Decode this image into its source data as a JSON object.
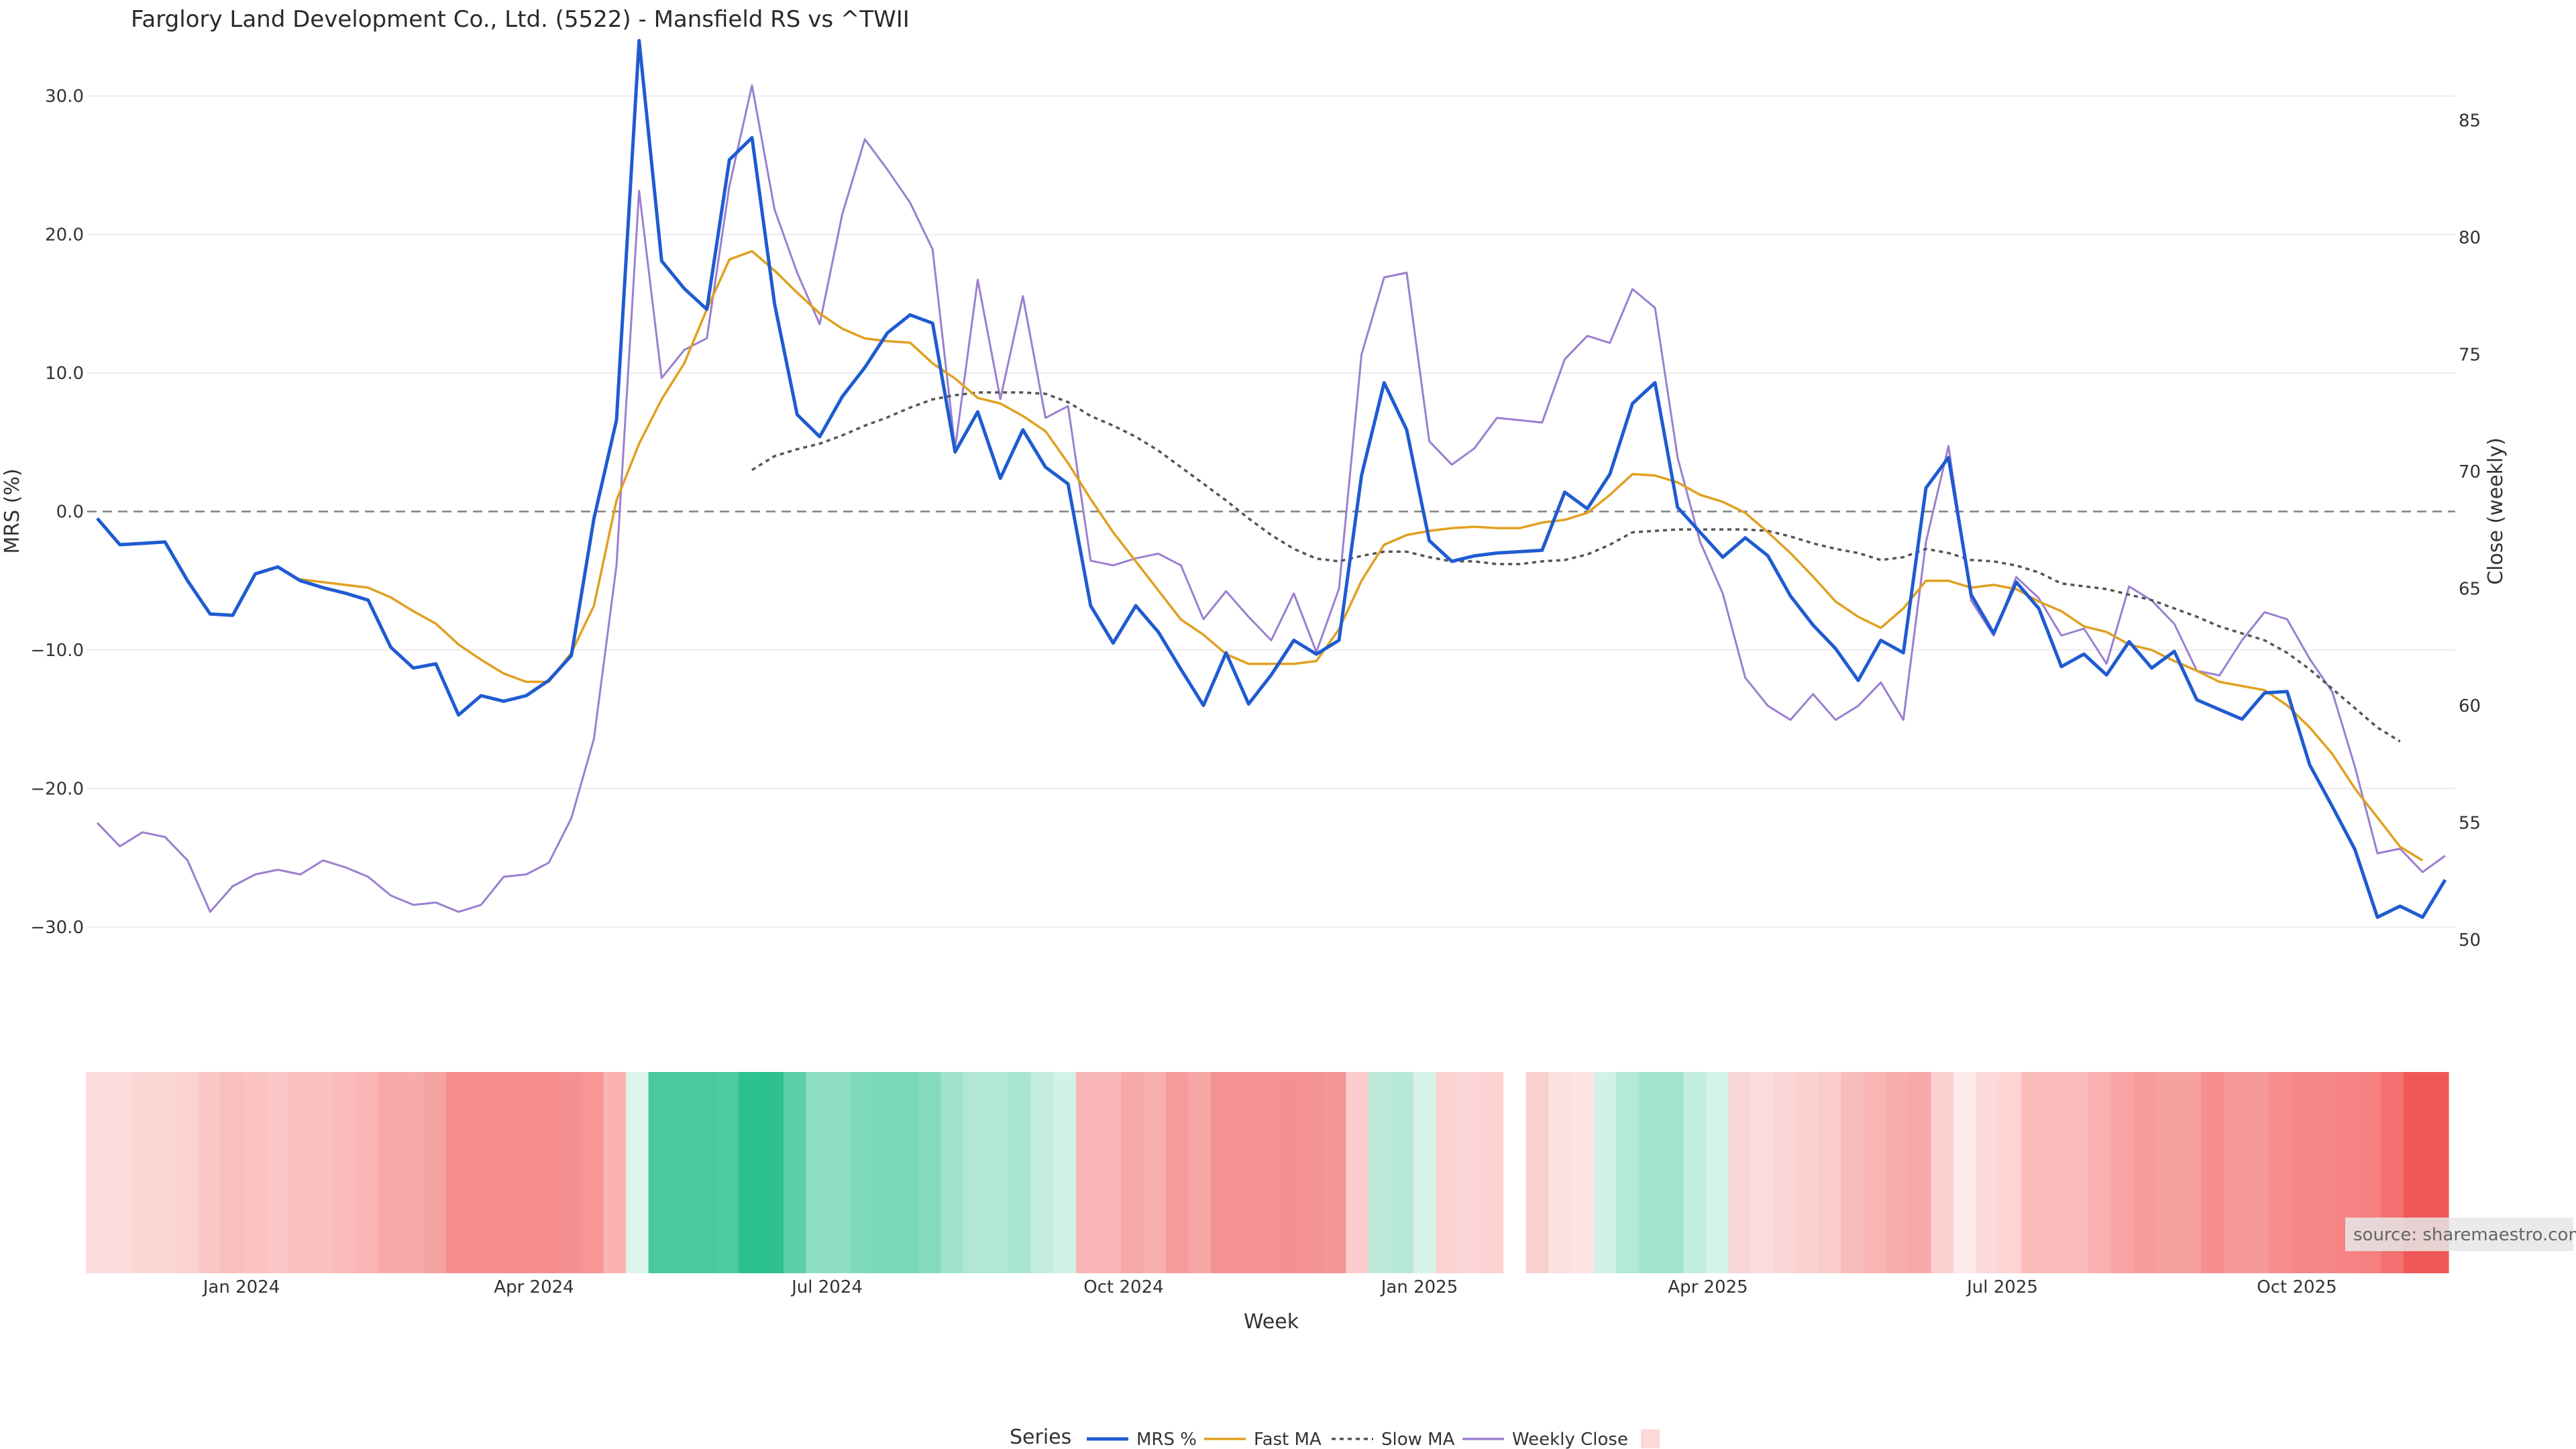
{
  "chart_data": {
    "type": "line",
    "title": "Farglory Land Development Co., Ltd. (5522) - Mansfield RS vs ^TWII",
    "x_axis": {
      "label": "Week",
      "tick_labels": [
        "Jan 2024",
        "Apr 2024",
        "Jul 2024",
        "Oct 2024",
        "Jan 2025",
        "Apr 2025",
        "Jul 2025",
        "Oct 2025"
      ]
    },
    "y_left": {
      "label": "MRS (%)",
      "range": [
        -35,
        35
      ],
      "ticks": [
        "30.0",
        "20.0",
        "10.0",
        "0.0",
        "−10.0",
        "−20.0",
        "−30.0"
      ],
      "tick_values": [
        30,
        20,
        10,
        0,
        -10,
        -20,
        -30
      ]
    },
    "y_right": {
      "label": "Close (weekly)",
      "range": [
        47.6,
        89.0
      ],
      "ticks": [
        "85",
        "80",
        "75",
        "70",
        "65",
        "60",
        "55",
        "50"
      ],
      "tick_values": [
        85,
        80,
        75,
        70,
        65,
        60,
        55,
        50
      ]
    },
    "series": [
      {
        "name": "MRS %",
        "color": "#1f5bd1",
        "axis": "left",
        "values": [
          -0.5,
          -2.4,
          -2.3,
          -2.2,
          -5.0,
          -7.4,
          -7.5,
          -4.5,
          -4.0,
          -5.0,
          -5.5,
          -5.9,
          -6.4,
          -9.8,
          -11.3,
          -11.0,
          -14.7,
          -13.3,
          -13.7,
          -13.3,
          -12.2,
          -10.4,
          -0.5,
          6.6,
          34.0,
          18.1,
          16.1,
          14.6,
          25.4,
          27.0,
          15.0,
          7.0,
          5.4,
          8.3,
          10.4,
          12.9,
          14.2,
          13.6,
          4.3,
          7.2,
          2.4,
          5.9,
          3.2,
          2.0,
          -6.8,
          -9.5,
          -6.8,
          -8.7,
          -11.4,
          -14.0,
          -10.2,
          -13.9,
          -11.8,
          -9.3,
          -10.3,
          -9.3,
          2.6,
          9.3,
          5.9,
          -2.1,
          -3.6,
          -3.2,
          -3.0,
          -2.9,
          -2.8,
          1.4,
          0.2,
          2.7,
          7.8,
          9.3,
          0.3,
          -1.5,
          -3.3,
          -1.9,
          -3.2,
          -6.1,
          -8.2,
          -9.9,
          -12.2,
          -9.3,
          -10.2,
          1.7,
          3.9,
          -6.0,
          -8.8,
          -5.1,
          -7.0,
          -11.2,
          -10.3,
          -11.8,
          -9.4,
          -11.3,
          -10.1,
          -13.6,
          -14.3,
          -15.0,
          -13.1,
          -13.0,
          -18.3,
          -21.3,
          -24.4,
          -29.3,
          -28.5,
          -29.3,
          -26.6
        ]
      },
      {
        "name": "Fast MA",
        "color": "#e0a020",
        "axis": "left",
        "start_index": 9,
        "values": [
          -4.9,
          -5.1,
          -5.3,
          -5.5,
          -6.2,
          -7.2,
          -8.1,
          -9.6,
          -10.7,
          -11.7,
          -12.3,
          -12.3,
          -10.2,
          -6.8,
          0.8,
          4.9,
          8.1,
          10.7,
          14.6,
          18.2,
          18.8,
          17.4,
          15.8,
          14.3,
          13.2,
          12.5,
          12.3,
          12.2,
          10.7,
          9.6,
          8.2,
          7.8,
          6.9,
          5.8,
          3.5,
          0.9,
          -1.5,
          -3.6,
          -5.7,
          -7.8,
          -8.9,
          -10.3,
          -11.0,
          -11.0,
          -11.0,
          -10.8,
          -8.5,
          -5.0,
          -2.4,
          -1.7,
          -1.4,
          -1.2,
          -1.1,
          -1.2,
          -1.2,
          -0.8,
          -0.6,
          -0.1,
          1.2,
          2.7,
          2.6,
          2.1,
          1.2,
          0.7,
          -0.1,
          -1.5,
          -3.0,
          -4.7,
          -6.5,
          -7.6,
          -8.4,
          -7.0,
          -5.0,
          -5.0,
          -5.5,
          -5.3,
          -5.6,
          -6.5,
          -7.2,
          -8.3,
          -8.7,
          -9.6,
          -10.0,
          -10.8,
          -11.5,
          -12.3,
          -12.6,
          -12.9,
          -14.0,
          -15.6,
          -17.5,
          -20.0,
          -22.1,
          -24.2,
          -25.2
        ]
      },
      {
        "name": "Slow MA",
        "color": "#555555",
        "axis": "left",
        "dashed": true,
        "start_index": 29,
        "values": [
          3.0,
          4.0,
          4.5,
          4.9,
          5.5,
          6.2,
          6.8,
          7.5,
          8.1,
          8.4,
          8.6,
          8.6,
          8.6,
          8.5,
          7.9,
          6.9,
          6.2,
          5.4,
          4.4,
          3.2,
          2.0,
          0.8,
          -0.5,
          -1.7,
          -2.7,
          -3.4,
          -3.6,
          -3.2,
          -2.9,
          -2.9,
          -3.3,
          -3.6,
          -3.6,
          -3.8,
          -3.8,
          -3.6,
          -3.5,
          -3.1,
          -2.4,
          -1.5,
          -1.4,
          -1.3,
          -1.3,
          -1.3,
          -1.3,
          -1.4,
          -1.8,
          -2.3,
          -2.7,
          -3.0,
          -3.5,
          -3.3,
          -2.7,
          -3.0,
          -3.5,
          -3.6,
          -3.9,
          -4.4,
          -5.2,
          -5.4,
          -5.6,
          -6.0,
          -6.4,
          -7.0,
          -7.6,
          -8.3,
          -8.8,
          -9.3,
          -10.2,
          -11.4,
          -12.8,
          -14.2,
          -15.6,
          -16.6
        ]
      },
      {
        "name": "Weekly Close",
        "color": "#9b7fd0",
        "axis": "right",
        "values": [
          55.0,
          54.0,
          54.6,
          54.4,
          53.4,
          51.2,
          52.3,
          52.8,
          53.0,
          52.8,
          53.4,
          53.1,
          52.7,
          51.9,
          51.5,
          51.6,
          51.2,
          51.5,
          52.7,
          52.8,
          53.3,
          55.2,
          58.6,
          66.0,
          82.0,
          74.0,
          75.2,
          75.7,
          82.2,
          86.5,
          81.2,
          78.5,
          76.3,
          81.0,
          84.2,
          82.9,
          81.5,
          79.5,
          71.0,
          78.2,
          73.1,
          77.5,
          72.3,
          72.8,
          66.2,
          66.0,
          66.3,
          66.5,
          66.0,
          63.7,
          64.9,
          63.8,
          62.8,
          64.8,
          62.3,
          65.0,
          75.0,
          78.3,
          78.5,
          71.3,
          70.3,
          71.0,
          72.3,
          72.2,
          72.1,
          74.8,
          75.8,
          75.5,
          77.8,
          77.0,
          70.6,
          67.0,
          64.8,
          61.2,
          60.0,
          59.4,
          60.5,
          59.4,
          60.0,
          61.0,
          59.4,
          67.0,
          71.1,
          64.5,
          63.0,
          65.5,
          64.6,
          63.0,
          63.3,
          61.8,
          65.1,
          64.5,
          63.5,
          61.5,
          61.3,
          62.8,
          64.0,
          63.7,
          62.0,
          60.6,
          57.4,
          53.7,
          53.9,
          52.9,
          53.6
        ]
      }
    ],
    "reference_line": {
      "y": 0,
      "style": "dashed"
    },
    "heat_strip": {
      "colors": [
        "#fcdcdc",
        "#fcdcdc",
        "#fdd6d6",
        "#fdd6d6",
        "#fcd2d2",
        "#fbc6c6",
        "#fbbebe",
        "#fbc2c2",
        "#fcc6c6",
        "#fac0c0",
        "#fac0c0",
        "#fbbbbb",
        "#f9b4b4",
        "#f8a8a8",
        "#f8aaaa",
        "#f7a2a2",
        "#f68e8e",
        "#f68e8e",
        "#f68c8c",
        "#f68c8c",
        "#f68e8e",
        "#f69090",
        "#f69696",
        "#fab2b2",
        "#dcf5ec",
        "#4ac99e",
        "#4ac99e",
        "#4ac99e",
        "#4dcba0",
        "#2cc190",
        "#2bc08e",
        "#5ccfa6",
        "#8edec2",
        "#8edec2",
        "#7fdab9",
        "#79d8b6",
        "#79d8b6",
        "#87dbbd",
        "#9fe3cb",
        "#b0e8d4",
        "#b0e8d4",
        "#a9e6d0",
        "#c2eddf",
        "#d2f2e7",
        "#f8b6b6",
        "#f8b6b6",
        "#f7a8a8",
        "#f8aeae",
        "#f69c9c",
        "#f7a6a6",
        "#f49292",
        "#f49292",
        "#f49292",
        "#f49090",
        "#f49292",
        "#f49696",
        "#fbcccc",
        "#bdebda",
        "#b8e9d7",
        "#d7f3e8",
        "#fcd2d2",
        "#fcd6d6",
        "#fcd2d2",
        "#ffffff",
        "#f9d0d0",
        "#fde0e0",
        "#fde3e3",
        "#d2f2e7",
        "#b4e9d5",
        "#a3e4cc",
        "#a3e4cc",
        "#c3ede0",
        "#d4f3e9",
        "#f8d6d6",
        "#fcdcdc",
        "#fbd6d6",
        "#fad0d0",
        "#fbcaca",
        "#f9bcbc",
        "#f9b4b4",
        "#f8abab",
        "#f7a8a8",
        "#fad0d0",
        "#fdeaea",
        "#fcd8d8",
        "#fcd4d4",
        "#fbbcbc",
        "#fbbcbc",
        "#fbbcbc",
        "#fab0b0",
        "#f8a4a4",
        "#f79c9c",
        "#f7a0a0",
        "#f7a0a0",
        "#f68e8e",
        "#f79898",
        "#f79898",
        "#f68e8e",
        "#f68888",
        "#f68888",
        "#f68484",
        "#f58080",
        "#f27070",
        "#f05858",
        "#f05858"
      ]
    },
    "legend": {
      "title": "Series",
      "items": [
        "MRS %",
        "Fast MA",
        "Slow MA",
        "Weekly Close",
        ""
      ],
      "position": "bottom-center"
    },
    "grid": true
  },
  "source_text": "source: sharemaestro.com"
}
